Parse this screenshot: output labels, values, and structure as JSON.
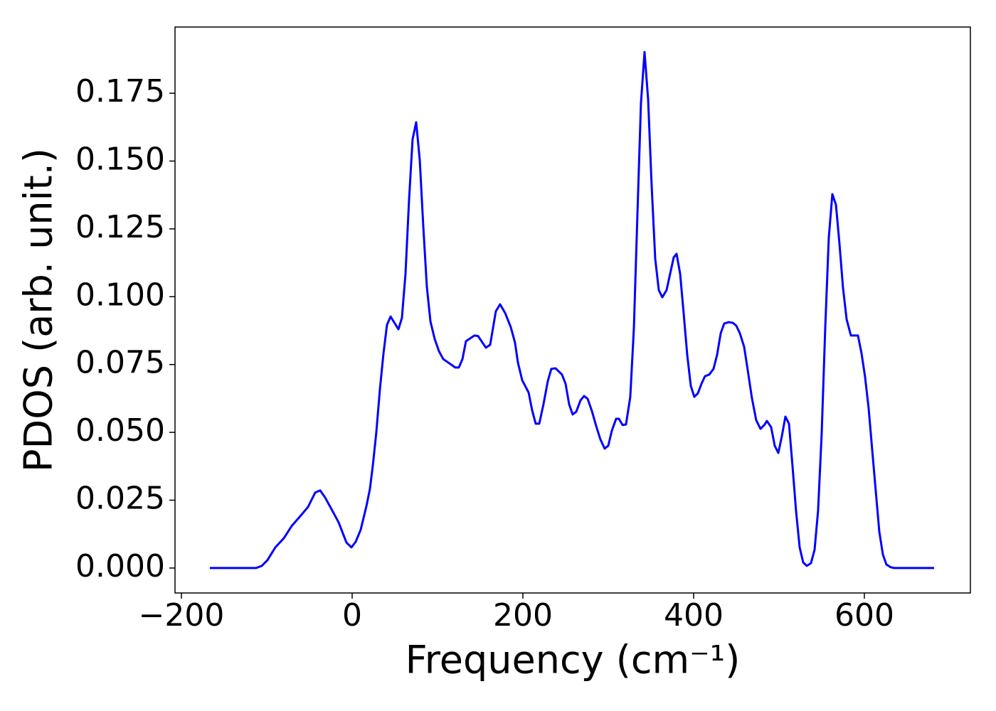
{
  "chart_data": {
    "type": "line",
    "xlabel": "Frequency (cm⁻¹)",
    "ylabel": "PDOS (arb. unit.)",
    "xlim": [
      -207.5,
      724.2
    ],
    "ylim": [
      -0.0092,
      0.1994
    ],
    "xticks": [
      {
        "value": -200,
        "label": "−200"
      },
      0,
      200,
      400,
      600
    ],
    "yticks": [
      {
        "value": 0,
        "label": "0.000"
      },
      {
        "value": 0.025,
        "label": "0.025"
      },
      {
        "value": 0.05,
        "label": "0.050"
      },
      {
        "value": 0.075,
        "label": "0.075"
      },
      {
        "value": 0.1,
        "label": "0.100"
      },
      {
        "value": 0.125,
        "label": "0.125"
      },
      {
        "value": 0.15,
        "label": "0.150"
      },
      {
        "value": 0.175,
        "label": "0.175"
      }
    ],
    "grid": false,
    "x": [
      -166.7,
      -112.5,
      -105.8,
      -99.2,
      -90,
      -80,
      -70.8,
      -60,
      -51.7,
      -43.3,
      -37.5,
      -31.7,
      -24.2,
      -15.8,
      -6.7,
      -0.8,
      4.2,
      10,
      16.7,
      20.8,
      24.2,
      28.3,
      32.5,
      36.7,
      40.8,
      45,
      54.2,
      58.3,
      62.5,
      66.7,
      70.8,
      75,
      79.2,
      83.3,
      87.5,
      91.7,
      96.7,
      101.7,
      106.7,
      115,
      120.8,
      125,
      129.2,
      133.3,
      143.3,
      147.5,
      156.7,
      161.7,
      168.3,
      173.3,
      179.2,
      185.8,
      190.8,
      194.2,
      199.2,
      206.7,
      210.8,
      215,
      219.2,
      224.2,
      229.2,
      233.3,
      238.3,
      245.8,
      250,
      254.2,
      258.3,
      262.5,
      267.5,
      271.7,
      275.8,
      280.8,
      285.8,
      290.8,
      295.8,
      300,
      304.2,
      309.2,
      312.5,
      316.7,
      320.8,
      325.8,
      330,
      334.2,
      338.3,
      342.5,
      346.7,
      350.8,
      355,
      359.2,
      363.3,
      368.3,
      372.5,
      376.7,
      380,
      384.2,
      388.3,
      392.5,
      396.7,
      400.8,
      405,
      409.2,
      413.3,
      418.3,
      423.3,
      427.5,
      431.7,
      435.8,
      440.8,
      445.8,
      450,
      454.2,
      459.2,
      463.3,
      468.3,
      473.3,
      478.3,
      483.3,
      485.8,
      490.8,
      495,
      499.2,
      503.3,
      507.5,
      511.7,
      515.8,
      520,
      524.2,
      528.3,
      532.5,
      537.5,
      541.7,
      545.8,
      550,
      554.2,
      558.3,
      562.5,
      566.7,
      570.8,
      575,
      579.2,
      584.2,
      592.5,
      596.7,
      600.8,
      605,
      609.2,
      613.3,
      617.5,
      621.7,
      625.8,
      630.8,
      635,
      681.7
    ],
    "series": [
      {
        "name": "PDOS",
        "color": "#0000ff",
        "values": [
          0,
          0,
          0.0008,
          0.0029,
          0.0076,
          0.011,
          0.0155,
          0.0194,
          0.0225,
          0.0278,
          0.0286,
          0.026,
          0.0217,
          0.0168,
          0.0094,
          0.0076,
          0.0097,
          0.0141,
          0.0228,
          0.0291,
          0.0377,
          0.05,
          0.0658,
          0.0791,
          0.0896,
          0.0927,
          0.088,
          0.0922,
          0.1085,
          0.136,
          0.158,
          0.1643,
          0.1504,
          0.126,
          0.1037,
          0.0909,
          0.0844,
          0.0799,
          0.077,
          0.0752,
          0.0739,
          0.0739,
          0.077,
          0.0836,
          0.0857,
          0.0855,
          0.0812,
          0.0823,
          0.0946,
          0.0972,
          0.094,
          0.0888,
          0.083,
          0.0757,
          0.0692,
          0.0647,
          0.0582,
          0.0532,
          0.0532,
          0.0605,
          0.0689,
          0.0734,
          0.0736,
          0.0713,
          0.0679,
          0.0603,
          0.0566,
          0.0576,
          0.0618,
          0.0634,
          0.0624,
          0.0579,
          0.0524,
          0.0474,
          0.044,
          0.0451,
          0.0506,
          0.055,
          0.055,
          0.0527,
          0.0529,
          0.0631,
          0.0883,
          0.1307,
          0.1713,
          0.1902,
          0.1727,
          0.1412,
          0.114,
          0.1024,
          0.0998,
          0.1024,
          0.1085,
          0.1145,
          0.1158,
          0.1085,
          0.094,
          0.0786,
          0.0671,
          0.0631,
          0.0644,
          0.0679,
          0.0707,
          0.0713,
          0.0734,
          0.0786,
          0.0865,
          0.0901,
          0.0906,
          0.0904,
          0.0893,
          0.0865,
          0.0815,
          0.0731,
          0.0626,
          0.0545,
          0.0513,
          0.0529,
          0.0542,
          0.0519,
          0.0451,
          0.0424,
          0.0485,
          0.0558,
          0.0532,
          0.0377,
          0.021,
          0.0076,
          0.0021,
          0.0008,
          0.0018,
          0.0068,
          0.0212,
          0.0495,
          0.0888,
          0.1216,
          0.1378,
          0.1339,
          0.1197,
          0.1032,
          0.0917,
          0.0857,
          0.0857,
          0.0791,
          0.0705,
          0.0589,
          0.0435,
          0.0286,
          0.0134,
          0.005,
          0.0013,
          0.0003,
          0,
          0
        ]
      }
    ]
  }
}
